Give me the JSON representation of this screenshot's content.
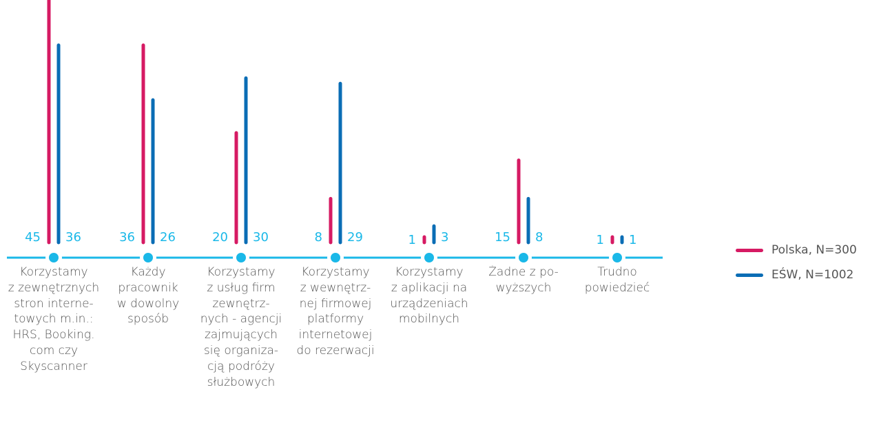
{
  "chart_data": {
    "type": "bar",
    "categories": [
      "Korzystamy\nz zewnętrznych\nstron interne-\ntowych m.in.:\nHRS, Booking.\ncom czy\nSkyscanner",
      "Każdy\npracownik\nw dowolny\nsposób",
      "Korzystamy\nz usług firm\nzewnętrz-\nnych - agencji\nzajmujących\nsię organiza-\ncją podróży\nsłużbowych",
      "Korzystamy\nz wewnętrz-\nnej firmowej\nplatformy\ninternetowej\ndo rezerwacji",
      "Korzystamy\nz aplikacji na\nurządzeniach\nmobilnych",
      "Żadne z po-\nwyższych",
      "Trudno\npowiedzieć"
    ],
    "series": [
      {
        "name": "Polska, N=300",
        "values": [
          45,
          36,
          20,
          8,
          1,
          15,
          1
        ]
      },
      {
        "name": "EŚW, N=1002",
        "values": [
          36,
          26,
          30,
          29,
          3,
          8,
          1
        ]
      }
    ],
    "ylim": [
      0,
      45
    ]
  },
  "colors": {
    "polska": "#d61a63",
    "esw": "#0a6db5",
    "axis": "#1ab8e8",
    "value_text": "#1ab8e8"
  }
}
